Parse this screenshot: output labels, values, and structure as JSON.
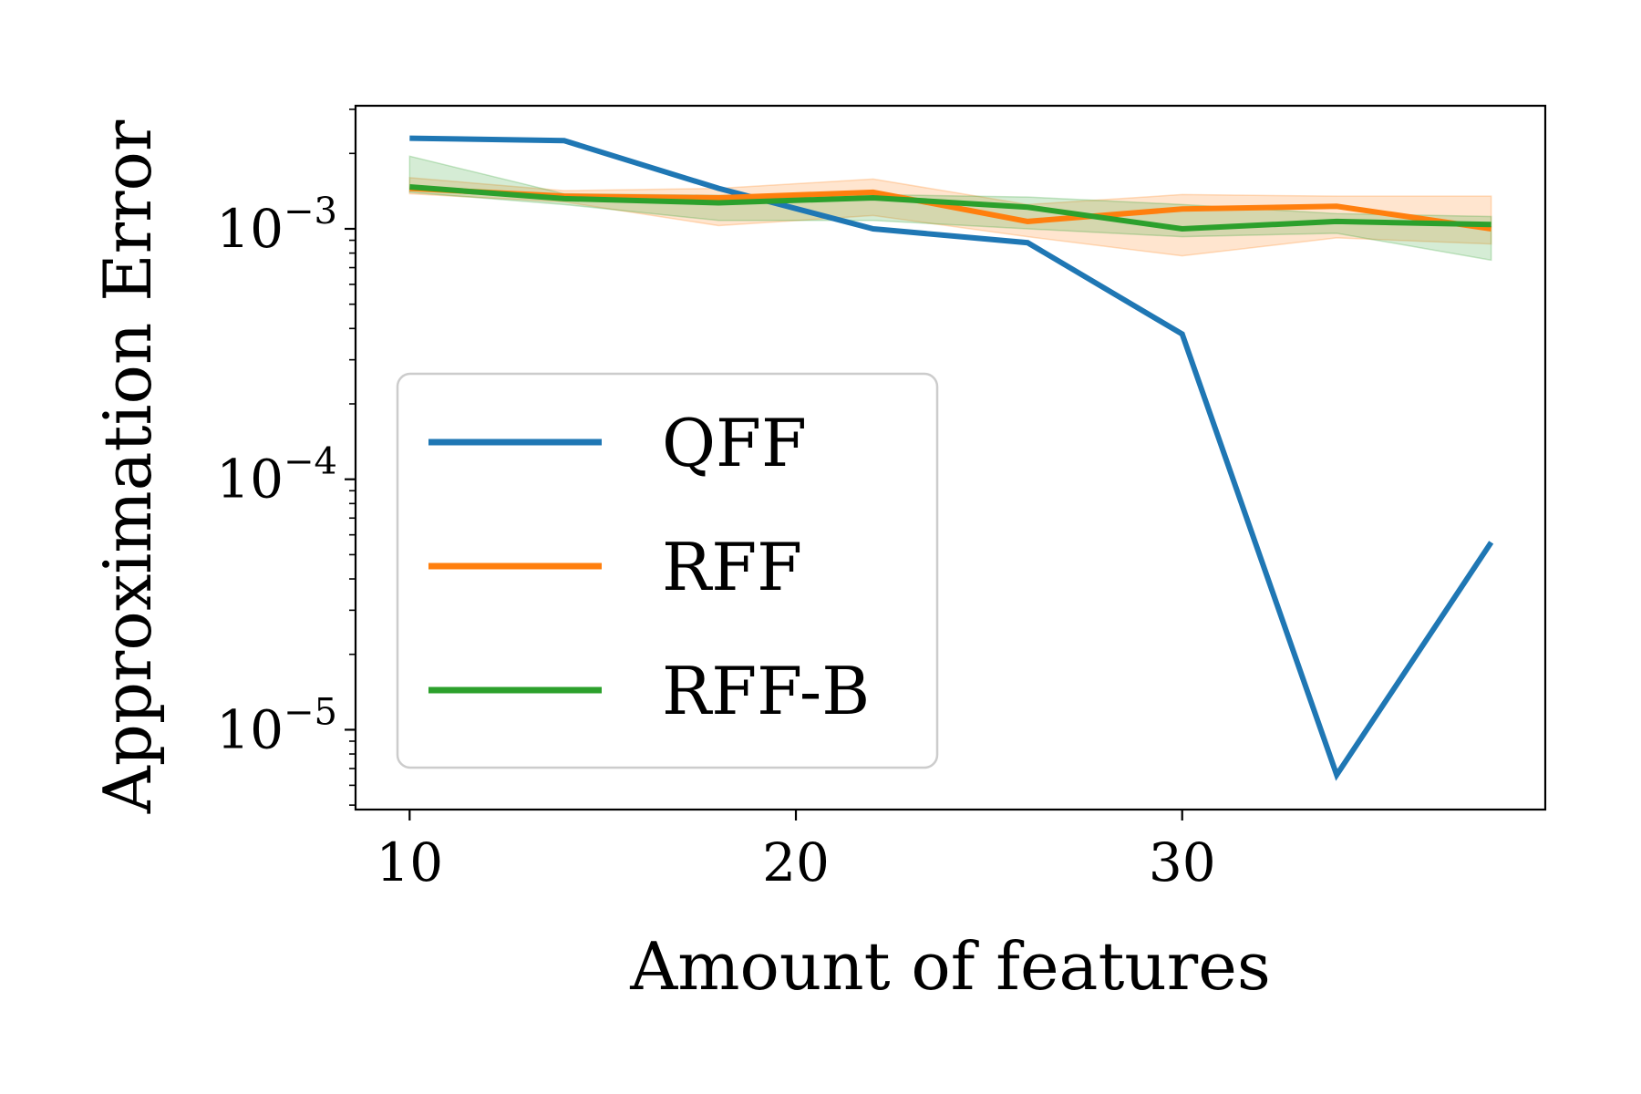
{
  "chart_data": {
    "type": "line",
    "title": "",
    "xlabel": "Amount of features",
    "ylabel": "Approximation Error",
    "x_scale": "linear",
    "y_scale": "log",
    "xlim": [
      8.6,
      39.4
    ],
    "ylim": [
      4.8e-06,
      0.0031
    ],
    "x_ticks": [
      10,
      20,
      30
    ],
    "x_tick_labels": [
      "10",
      "20",
      "30"
    ],
    "y_ticks": [
      1e-05,
      0.0001,
      0.001
    ],
    "y_tick_labels": [
      {
        "base": "10",
        "exp": "−5"
      },
      {
        "base": "10",
        "exp": "−4"
      },
      {
        "base": "10",
        "exp": "−3"
      }
    ],
    "grid": false,
    "legend_position": "center-left",
    "x": [
      10,
      14,
      18,
      22,
      26,
      30,
      34,
      38
    ],
    "series": [
      {
        "name": "QFF",
        "color": "#1f77b4",
        "values": [
          0.0023,
          0.00225,
          0.00145,
          0.001,
          0.00088,
          0.00038,
          6.6e-06,
          5.6e-05
        ]
      },
      {
        "name": "RFF",
        "color": "#ff7f0e",
        "values": [
          0.00145,
          0.00135,
          0.00133,
          0.0014,
          0.00107,
          0.0012,
          0.00123,
          0.001
        ],
        "band_lower": [
          0.00138,
          0.00128,
          0.00103,
          0.00113,
          0.00093,
          0.00078,
          0.00092,
          0.00087
        ],
        "band_upper": [
          0.0016,
          0.00142,
          0.00145,
          0.00158,
          0.00125,
          0.00137,
          0.00135,
          0.00135
        ]
      },
      {
        "name": "RFF-B",
        "color": "#2ca02c",
        "values": [
          0.00147,
          0.00132,
          0.00127,
          0.00133,
          0.00122,
          0.001,
          0.00107,
          0.00104
        ],
        "band_lower": [
          0.0014,
          0.00125,
          0.00108,
          0.00108,
          0.001,
          0.00093,
          0.00096,
          0.00075
        ],
        "band_upper": [
          0.00195,
          0.00138,
          0.00136,
          0.00137,
          0.00134,
          0.00125,
          0.00115,
          0.00112
        ]
      }
    ]
  }
}
